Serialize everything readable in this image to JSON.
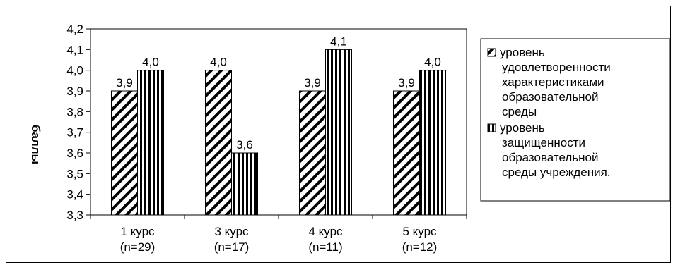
{
  "chart_data": {
    "type": "bar",
    "categories": [
      [
        "1 курс",
        "(n=29)"
      ],
      [
        "3 курс",
        "(n=17)"
      ],
      [
        "4 курс",
        "(n=11)"
      ],
      [
        "5 курс",
        "(n=12)"
      ]
    ],
    "series": [
      {
        "name": "уровень удовлетворенности характеристиками образовательной среды",
        "name_lines": [
          "уровень",
          "удовлетворенности",
          "характеристиками",
          "образовательной",
          "среды"
        ],
        "pattern": "diagonal-hatch",
        "values": [
          3.9,
          4.0,
          3.9,
          3.9
        ],
        "labels": [
          "3,9",
          "4,0",
          "3,9",
          "3,9"
        ]
      },
      {
        "name": "уровень защищенности образовательной среды учреждения.",
        "name_lines": [
          "уровень",
          "защищенности",
          "образовательной",
          "среды учреждения."
        ],
        "pattern": "vertical-stripes",
        "values": [
          4.0,
          3.6,
          4.1,
          4.0
        ],
        "labels": [
          "4,0",
          "3,6",
          "4,1",
          "4,0"
        ]
      }
    ],
    "ylabel": "баллы",
    "xlabel": "",
    "ylim": [
      3.3,
      4.2
    ],
    "yticks": [
      "3,3",
      "3,4",
      "3,5",
      "3,6",
      "3,7",
      "3,8",
      "3,9",
      "4,0",
      "4,1",
      "4,2"
    ],
    "grid": false,
    "legend_position": "right"
  }
}
